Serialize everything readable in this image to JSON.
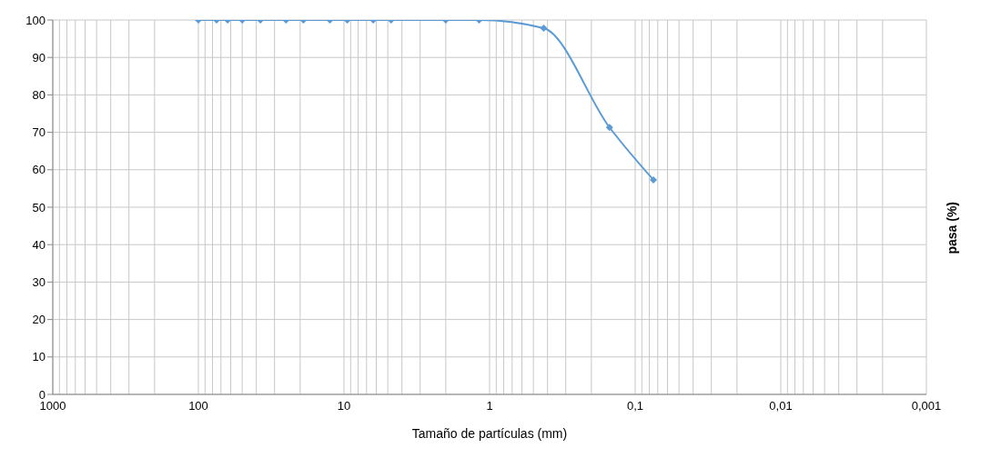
{
  "chart_data": {
    "type": "line",
    "xlabel": "Tamaño de partículas (mm)",
    "ylabel": "pasa (%)",
    "x": [
      100,
      75,
      63,
      50,
      37.5,
      25,
      19,
      12.5,
      9.5,
      6.3,
      4.75,
      2,
      1.18,
      0.425,
      0.15,
      0.075
    ],
    "series": [
      {
        "color": "#5b9bd5",
        "values": [
          100,
          100,
          100,
          100,
          100,
          100,
          100,
          100,
          100,
          100,
          100,
          100,
          100,
          97.8,
          71.3,
          57.3
        ]
      }
    ],
    "xlim": [
      1000,
      0.001
    ],
    "xticks": [
      {
        "value": 1000,
        "label": "1000"
      },
      {
        "value": 900,
        "label": null
      },
      {
        "value": 800,
        "label": null
      },
      {
        "value": 700,
        "label": null
      },
      {
        "value": 600,
        "label": null
      },
      {
        "value": 500,
        "label": null
      },
      {
        "value": 400,
        "label": null
      },
      {
        "value": 300,
        "label": null
      },
      {
        "value": 200,
        "label": null
      },
      {
        "value": 100,
        "label": "100"
      },
      {
        "value": 90,
        "label": null
      },
      {
        "value": 80,
        "label": null
      },
      {
        "value": 70,
        "label": null
      },
      {
        "value": 60,
        "label": null
      },
      {
        "value": 50,
        "label": null
      },
      {
        "value": 40,
        "label": null
      },
      {
        "value": 30,
        "label": null
      },
      {
        "value": 20,
        "label": null
      },
      {
        "value": 10,
        "label": "10"
      },
      {
        "value": 9,
        "label": null
      },
      {
        "value": 8,
        "label": null
      },
      {
        "value": 7,
        "label": null
      },
      {
        "value": 6,
        "label": null
      },
      {
        "value": 5,
        "label": null
      },
      {
        "value": 4,
        "label": null
      },
      {
        "value": 3,
        "label": null
      },
      {
        "value": 2,
        "label": null
      },
      {
        "value": 1,
        "label": "1"
      },
      {
        "value": 0.9,
        "label": null
      },
      {
        "value": 0.8,
        "label": null
      },
      {
        "value": 0.7,
        "label": null
      },
      {
        "value": 0.6,
        "label": null
      },
      {
        "value": 0.5,
        "label": null
      },
      {
        "value": 0.4,
        "label": null
      },
      {
        "value": 0.3,
        "label": null
      },
      {
        "value": 0.2,
        "label": null
      },
      {
        "value": 0.1,
        "label": "0,1"
      },
      {
        "value": 0.09,
        "label": null
      },
      {
        "value": 0.08,
        "label": null
      },
      {
        "value": 0.07,
        "label": null
      },
      {
        "value": 0.06,
        "label": null
      },
      {
        "value": 0.05,
        "label": null
      },
      {
        "value": 0.04,
        "label": null
      },
      {
        "value": 0.03,
        "label": null
      },
      {
        "value": 0.02,
        "label": null
      },
      {
        "value": 0.01,
        "label": "0,01"
      },
      {
        "value": 0.009,
        "label": null
      },
      {
        "value": 0.008,
        "label": null
      },
      {
        "value": 0.007,
        "label": null
      },
      {
        "value": 0.006,
        "label": null
      },
      {
        "value": 0.005,
        "label": null
      },
      {
        "value": 0.004,
        "label": null
      },
      {
        "value": 0.003,
        "label": null
      },
      {
        "value": 0.002,
        "label": null
      },
      {
        "value": 0.001,
        "label": "0,001"
      }
    ],
    "ylim": [
      0,
      100
    ],
    "yticks": [
      0,
      10,
      20,
      30,
      40,
      50,
      60,
      70,
      80,
      90,
      100
    ],
    "log": "x",
    "grid": true,
    "marker": "diamond",
    "line_style": "solid"
  }
}
